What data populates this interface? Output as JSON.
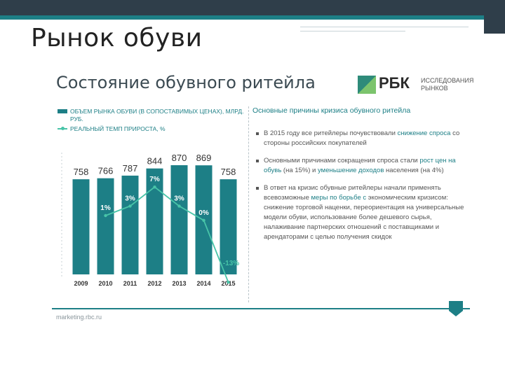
{
  "slide": {
    "title": "Рынок обуви"
  },
  "infographic": {
    "title": "Состояние обувного ритейла",
    "logo": {
      "brand": "РБК",
      "subtitle_line1": "ИССЛЕДОВАНИЯ",
      "subtitle_line2": "РЫНКОВ"
    },
    "source": "marketing.rbc.ru"
  },
  "panel": {
    "title": "Основные причины кризиса обувного ритейла",
    "bullets": [
      {
        "parts": [
          {
            "text": "В 2015 году все ритейлеры почувствовали ",
            "hl": false
          },
          {
            "text": "снижение спроса",
            "hl": true
          },
          {
            "text": " со стороны российских покупателей",
            "hl": false
          }
        ]
      },
      {
        "parts": [
          {
            "text": "Основными причинами сокращения спроса стали ",
            "hl": false
          },
          {
            "text": "рост цен на обувь",
            "hl": true
          },
          {
            "text": " (на 15%) и ",
            "hl": false
          },
          {
            "text": "уменьшение доходов",
            "hl": true
          },
          {
            "text": " населения (на 4%)",
            "hl": false
          }
        ]
      },
      {
        "parts": [
          {
            "text": "В ответ на кризис обувные ритейлеры начали применять всевозможные ",
            "hl": false
          },
          {
            "text": "меры по борьбе с",
            "hl": true
          },
          {
            "text": " экономическим кризисом: снижение торговой наценки, переориентация на универсальные модели обуви, использование более дешевого сырья, налаживание партнерских отношений с поставщиками и арендаторами с целью получения скидок",
            "hl": false
          }
        ]
      }
    ]
  },
  "colors": {
    "bar": "#1d7f86",
    "line": "#48c4a8",
    "label_on_bar": "#ffffff",
    "neg_label": "#48c4a8"
  },
  "chart_data": {
    "type": "bar",
    "legend": [
      "ОБЪЕМ РЫНКА ОБУВИ (В СОПОСТАВИМЫХ ЦЕНАХ), МЛРД. РУБ.",
      "РЕАЛЬНЫЙ ТЕМП ПРИРОСТА, %"
    ],
    "categories": [
      "2009",
      "2010",
      "2011",
      "2012",
      "2013",
      "2014",
      "2015"
    ],
    "series": [
      {
        "name": "ОБЪЕМ РЫНКА ОБУВИ (В СОПОСТАВИМЫХ ЦЕНАХ), МЛРД. РУБ.",
        "type": "bar",
        "values": [
          758,
          766,
          787,
          844,
          870,
          869,
          758
        ],
        "labels": [
          "758",
          "766",
          "787",
          "844",
          "870",
          "869",
          "758"
        ]
      },
      {
        "name": "РЕАЛЬНЫЙ ТЕМП ПРИРОСТА, %",
        "type": "line",
        "x": [
          "2010",
          "2011",
          "2012",
          "2013",
          "2014",
          "2015"
        ],
        "values": [
          1,
          3,
          7,
          3,
          0,
          -13
        ],
        "labels": [
          "1%",
          "3%",
          "7%",
          "3%",
          "0%",
          "-13%"
        ]
      }
    ],
    "grid": false,
    "legend_position": "top-left"
  }
}
